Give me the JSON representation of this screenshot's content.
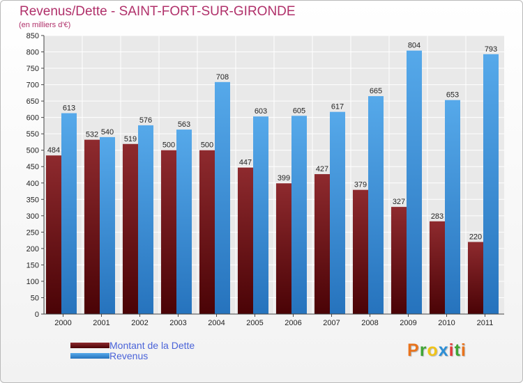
{
  "header": {
    "title": "Revenus/Dette - SAINT-FORT-SUR-GIRONDE",
    "subtitle": "(en milliers d'€)"
  },
  "logo": {
    "letters": [
      "P",
      "r",
      "o",
      "x",
      "i",
      "t",
      "i"
    ],
    "colors": [
      "#e8731c",
      "#3fa535",
      "#f0c419",
      "#2d8fd6",
      "#e23a3a",
      "#3fa535",
      "#e8731c"
    ]
  },
  "chart_data": {
    "type": "bar",
    "title": "Revenus/Dette - SAINT-FORT-SUR-GIRONDE",
    "subtitle": "(en milliers d'€)",
    "categories": [
      "2000",
      "2001",
      "2002",
      "2003",
      "2004",
      "2005",
      "2006",
      "2007",
      "2008",
      "2009",
      "2010",
      "2011"
    ],
    "series": [
      {
        "name": "Montant de la Dette",
        "color": "#7a1318",
        "values": [
          484,
          532,
          519,
          500,
          500,
          447,
          399,
          427,
          379,
          327,
          283,
          220
        ]
      },
      {
        "name": "Revenus",
        "color": "#3f99e0",
        "values": [
          613,
          540,
          576,
          563,
          708,
          603,
          605,
          617,
          665,
          804,
          653,
          793
        ]
      }
    ],
    "ylim": [
      0,
      850
    ],
    "yticks": [
      "0",
      "50",
      "100",
      "150",
      "200",
      "250",
      "300",
      "350",
      "400",
      "450",
      "500",
      "550",
      "600",
      "650",
      "700",
      "750",
      "800",
      "850"
    ],
    "grid": true,
    "legend": "bottom-left"
  }
}
